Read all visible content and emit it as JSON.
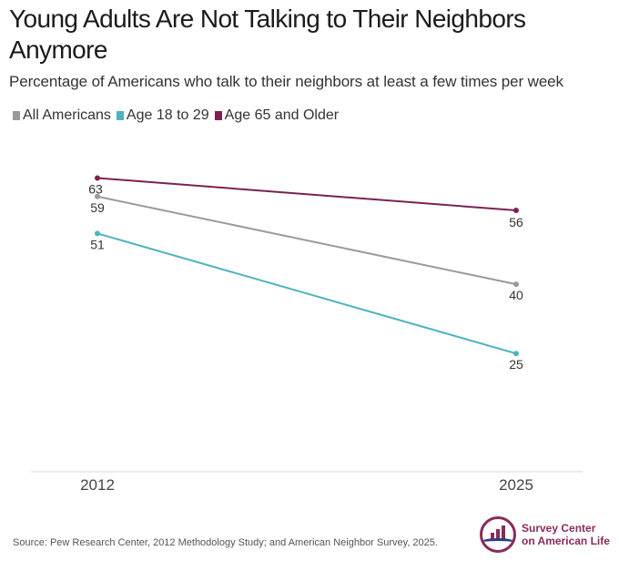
{
  "header": {
    "title": "Young Adults Are Not Talking to Their Neighbors Anymore",
    "subtitle": "Percentage of Americans who talk to their neighbors at least a few times per week"
  },
  "legend": {
    "items": [
      {
        "label": "All Americans",
        "color": "#9a9a9a"
      },
      {
        "label": "Age 18 to 29",
        "color": "#4fb3bd"
      },
      {
        "label": "Age 65 and Older",
        "color": "#7b2250"
      }
    ]
  },
  "chart_data": {
    "type": "line",
    "x": [
      "2012",
      "2025"
    ],
    "series": [
      {
        "name": "All Americans",
        "values": [
          59,
          40
        ],
        "color": "#9a9a9a"
      },
      {
        "name": "Age 18 to 29",
        "values": [
          51,
          25
        ],
        "color": "#4fb3bd"
      },
      {
        "name": "Age 65 and Older",
        "values": [
          63,
          56
        ],
        "color": "#7b2250"
      }
    ],
    "title": "Young Adults Are Not Talking to Their Neighbors Anymore",
    "xlabel": "",
    "ylabel": "",
    "ylim": [
      0,
      70
    ],
    "grid": false,
    "legend_position": "top-left"
  },
  "footer": {
    "source": "Source: Pew Research Center, 2012 Methodology Study; and American Neighbor Survey, 2025.",
    "logo_line1": "Survey Center",
    "logo_line2": "on American Life"
  }
}
